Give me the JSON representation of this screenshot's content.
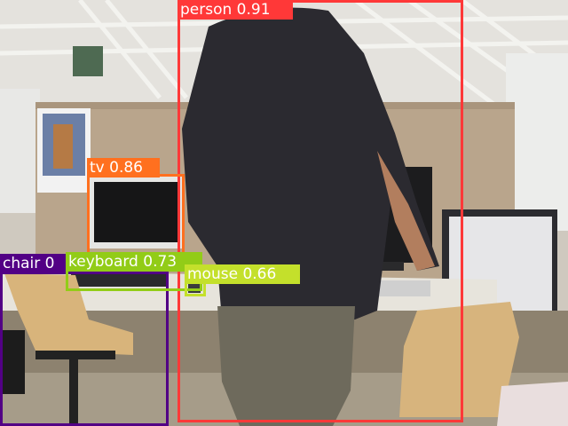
{
  "detections": [
    {
      "label": "person 0.91",
      "class": "person",
      "score": 0.91,
      "color": "#ff3838",
      "text_color": "#ffffff"
    },
    {
      "label": "tv 0.86",
      "class": "tv",
      "score": 0.86,
      "color": "#ff701f",
      "text_color": "#ffffff"
    },
    {
      "label": "keyboard 0.73",
      "class": "keyboard",
      "score": 0.73,
      "color": "#92cc17",
      "text_color": "#ffffff"
    },
    {
      "label": "mouse 0.66",
      "class": "mouse",
      "score": 0.66,
      "color": "#c4e02b",
      "text_color": "#ffffff"
    },
    {
      "label": "chair 0",
      "class": "chair",
      "color": "#520085",
      "text_color": "#ffffff"
    }
  ]
}
